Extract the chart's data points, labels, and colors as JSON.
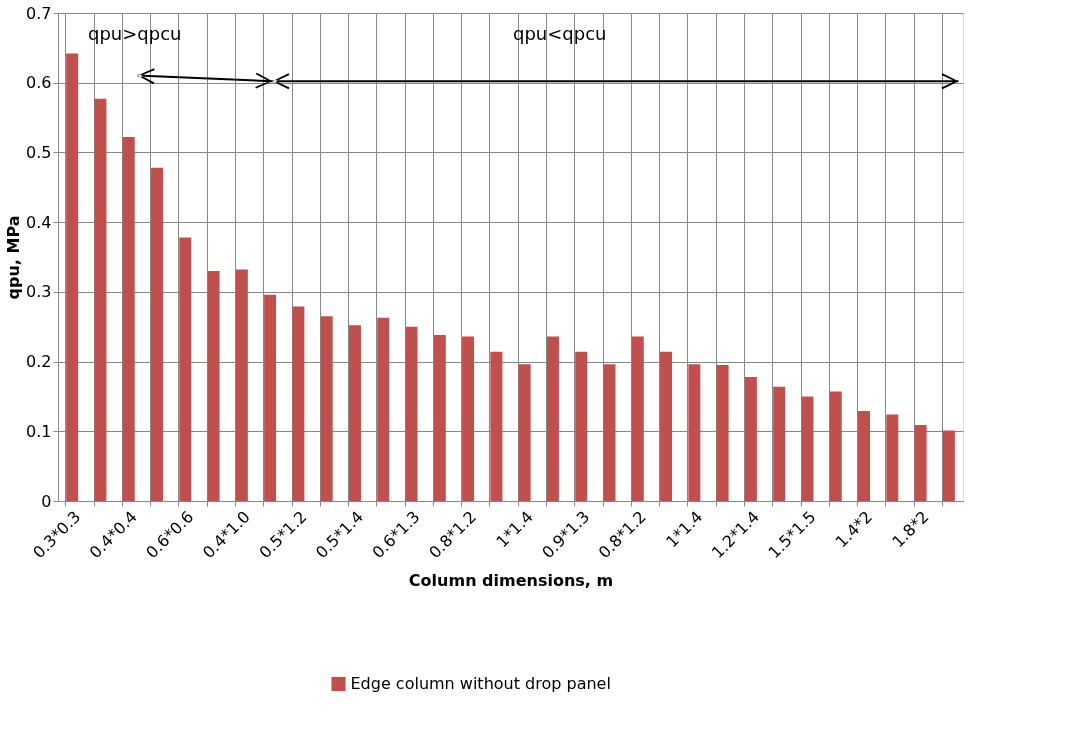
{
  "chart_data": {
    "type": "bar",
    "xlabel": "Column dimensions, m",
    "ylabel": "qpu, MPa",
    "categories": [
      "0.3*0.3",
      null,
      "0.4*0.4",
      null,
      "0.6*0.6",
      null,
      "0.4*1.0",
      null,
      "0.5*1.2",
      null,
      "0.5*1.4",
      null,
      "0.6*1.3",
      null,
      "0.8*1.2",
      null,
      "1*1.4",
      null,
      "0.9*1.3",
      null,
      "0.8*1.2",
      null,
      "1*1.4",
      null,
      "1.2*1.4",
      null,
      "1.5*1.5",
      null,
      "1.4*2",
      null,
      "1.8*2",
      null
    ],
    "series": [
      {
        "name": "Edge column without drop panel",
        "color": "#c0504d",
        "values": [
          0.642,
          0.577,
          0.522,
          0.478,
          0.378,
          0.33,
          0.332,
          0.296,
          0.279,
          0.265,
          0.252,
          0.263,
          0.25,
          0.238,
          0.236,
          0.214,
          0.196,
          0.236,
          0.214,
          0.196,
          0.236,
          0.214,
          0.196,
          0.195,
          0.178,
          0.164,
          0.15,
          0.157,
          0.129,
          0.124,
          0.109,
          0.101
        ]
      }
    ],
    "ylim": [
      0,
      0.7
    ],
    "yticks": [
      {
        "value": 0,
        "label": "0"
      },
      0.1,
      0.2,
      0.3,
      0.4,
      0.5,
      0.6,
      0.7
    ],
    "grid": true,
    "legend": "bottom",
    "annotations": [
      "qpu>qpcu",
      "qpu<qpcu"
    ]
  }
}
